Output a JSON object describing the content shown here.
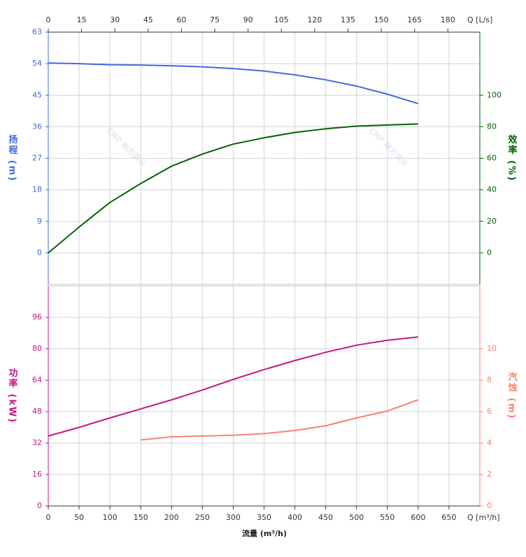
{
  "chart_data": [
    {
      "type": "line",
      "ylabel": "扬程 (m)",
      "y2label": "效率 (%)",
      "x2label": "Q [L/s]",
      "x2lim": [
        0,
        194.4
      ],
      "x2ticks": [
        0,
        15,
        30,
        45,
        60,
        75,
        90,
        105,
        120,
        135,
        150,
        165,
        180
      ],
      "xlim": [
        0,
        700
      ],
      "x": [
        0,
        50,
        100,
        150,
        200,
        250,
        300,
        350,
        400,
        450,
        500,
        550,
        600
      ],
      "ylim": [
        -9,
        63
      ],
      "yticks": [
        0,
        9,
        18,
        27,
        36,
        45,
        54,
        63
      ],
      "y2lim": [
        -20,
        140
      ],
      "y2ticks": [
        0,
        20,
        40,
        60,
        80,
        100
      ],
      "grid": true,
      "watermark": "CNP 南方泵业",
      "series": [
        {
          "name": "扬程",
          "color": "#4169e1",
          "values": [
            54.2,
            54.0,
            53.7,
            53.6,
            53.4,
            53.1,
            52.6,
            51.9,
            50.8,
            49.4,
            47.6,
            45.3,
            42.6
          ]
        },
        {
          "name": "效率",
          "color": "#006400",
          "axis": "y2",
          "values": [
            0,
            16.4,
            32,
            44,
            55,
            62.7,
            69,
            73,
            76.4,
            78.7,
            80.4,
            81.1,
            81.8
          ]
        }
      ]
    },
    {
      "type": "line",
      "ylabel": "功率 (kW)",
      "y2label": "汽蚀 (m)",
      "xlabel": "流量 (m³/h)",
      "xunit": "Q [m³/h]",
      "xlim": [
        0,
        700
      ],
      "xticks": [
        0,
        50,
        100,
        150,
        200,
        250,
        300,
        350,
        400,
        450,
        500,
        550,
        600,
        650
      ],
      "x": [
        0,
        50,
        100,
        150,
        200,
        250,
        300,
        350,
        400,
        450,
        500,
        550,
        600
      ],
      "ylim": [
        0,
        112
      ],
      "yticks": [
        0,
        16,
        32,
        48,
        64,
        80,
        96
      ],
      "y2lim": [
        0,
        14
      ],
      "y2ticks": [
        0,
        2,
        4,
        6,
        8,
        10
      ],
      "grid": true,
      "series": [
        {
          "name": "功率",
          "color": "#c71585",
          "values": [
            35.6,
            40,
            44.8,
            49.4,
            54,
            59,
            64.4,
            69.4,
            74,
            78.2,
            81.8,
            84.3,
            86
          ]
        },
        {
          "name": "汽蚀",
          "color": "#fa8072",
          "axis": "y2",
          "values": [
            null,
            null,
            null,
            4.2,
            4.4,
            4.45,
            4.5,
            4.6,
            4.8,
            5.1,
            5.6,
            6.04,
            6.75
          ]
        }
      ]
    }
  ]
}
